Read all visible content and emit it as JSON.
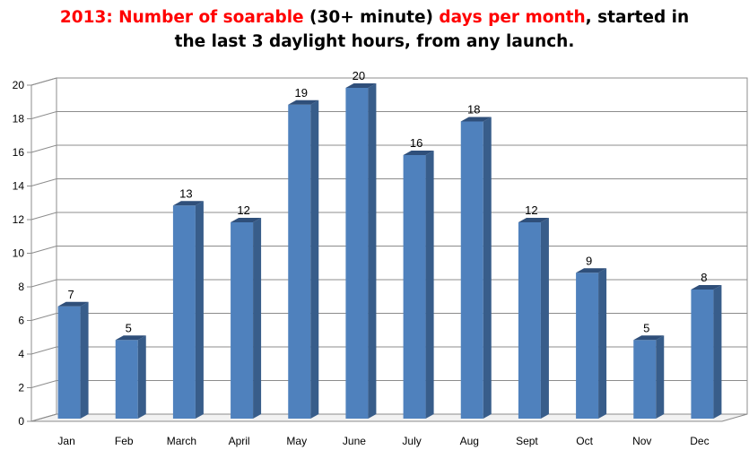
{
  "title": {
    "line1": [
      {
        "text": "2013: ",
        "highlight": true
      },
      {
        "text": "Number of soarable",
        "highlight": true
      },
      {
        "text": " (30+ minute) ",
        "highlight": false
      },
      {
        "text": "days per month",
        "highlight": true
      },
      {
        "text": ", started in",
        "highlight": false
      }
    ],
    "line2": "the last 3 daylight hours, from any launch."
  },
  "colors": {
    "highlight": "#ff0000",
    "bar_front": "#4f81bd",
    "bar_side": "#385d8a",
    "bar_top": "#2f4f7a",
    "grid": "#8c8c8c"
  },
  "chart_data": {
    "type": "bar",
    "categories": [
      "Jan",
      "Feb",
      "March",
      "April",
      "May",
      "June",
      "July",
      "Aug",
      "Sept",
      "Oct",
      "Nov",
      "Dec"
    ],
    "values": [
      7,
      5,
      13,
      12,
      19,
      20,
      16,
      18,
      12,
      9,
      5,
      8
    ],
    "y_ticks": [
      "0",
      "2",
      "4",
      "6",
      "8",
      "10",
      "12",
      "14",
      "16",
      "18",
      "20"
    ],
    "ylim": [
      0,
      20
    ],
    "grid": true,
    "legend": "none",
    "style": "3d-column"
  }
}
